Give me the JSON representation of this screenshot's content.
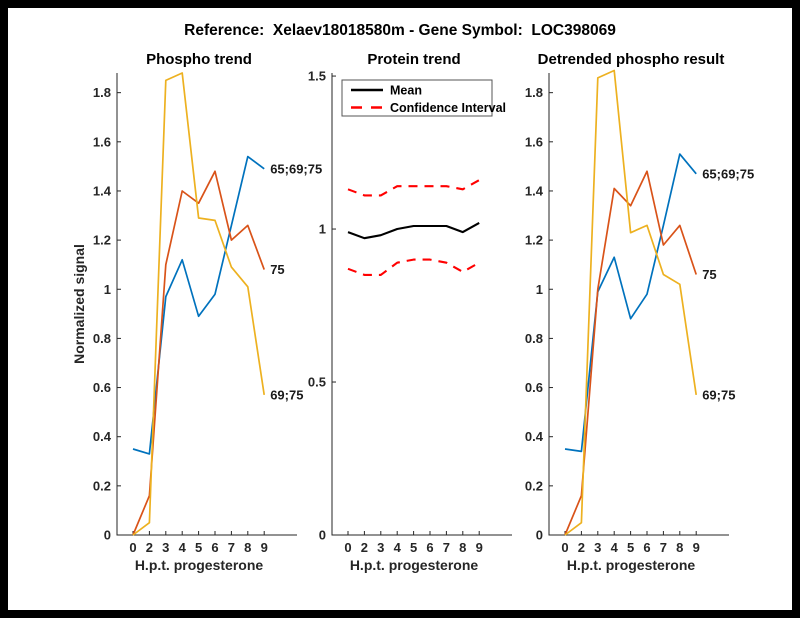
{
  "frame": {
    "border_color": "#000000",
    "canvas_color": "#ffffff"
  },
  "header": {
    "title": "Reference:  Xelaev18018580m - Gene Symbol:  LOC398069"
  },
  "colors": {
    "blue": "#0072BD",
    "orange": "#D95319",
    "yellow": "#EDB120",
    "red": "#FF0000",
    "black": "#000000",
    "axis": "#262626"
  },
  "chart_data": [
    {
      "type": "line",
      "title": "Phospho trend",
      "xlabel": "H.p.t. progesterone",
      "ylabel": "Normalized signal",
      "categories": [
        "0",
        "2",
        "3",
        "4",
        "5",
        "6",
        "7",
        "8",
        "9"
      ],
      "ylim": [
        0,
        1.88
      ],
      "grid": false,
      "yticks": {
        "values": [
          0,
          0.2,
          0.4,
          0.6,
          0.8,
          1,
          1.2,
          1.4,
          1.6,
          1.8
        ],
        "labels": [
          "0",
          "0.2",
          "0.4",
          "0.6",
          "0.8",
          "1",
          "1.2",
          "1.4",
          "1.6",
          "1.8"
        ]
      },
      "series": [
        {
          "name": "65;69;75",
          "color_key": "blue",
          "dash": false,
          "end_label": "65;69;75",
          "values": [
            0.35,
            0.33,
            0.97,
            1.12,
            0.89,
            0.98,
            1.26,
            1.54,
            1.49
          ]
        },
        {
          "name": "75",
          "color_key": "orange",
          "dash": false,
          "end_label": "75",
          "values": [
            0.0,
            0.16,
            1.1,
            1.4,
            1.35,
            1.48,
            1.2,
            1.26,
            1.08
          ]
        },
        {
          "name": "69;75",
          "color_key": "yellow",
          "dash": false,
          "end_label": "69;75",
          "values": [
            0.0,
            0.05,
            1.85,
            1.88,
            1.29,
            1.28,
            1.09,
            1.01,
            0.57
          ]
        }
      ],
      "legend": null
    },
    {
      "type": "line",
      "title": "Protein trend",
      "xlabel": "H.p.t. progesterone",
      "ylabel": "",
      "categories": [
        "0",
        "2",
        "3",
        "4",
        "5",
        "6",
        "7",
        "8",
        "9"
      ],
      "ylim": [
        0,
        1.51
      ],
      "grid": false,
      "yticks": {
        "values": [
          0,
          0.5,
          1,
          1.5
        ],
        "labels": [
          "0",
          "0.5",
          "1",
          "1.5"
        ]
      },
      "series": [
        {
          "name": "Mean",
          "color_key": "black",
          "dash": false,
          "end_label": null,
          "values": [
            0.99,
            0.97,
            0.98,
            1.0,
            1.01,
            1.01,
            1.01,
            0.99,
            1.02
          ]
        },
        {
          "name": "Confidence Interval upper",
          "color_key": "red",
          "dash": true,
          "end_label": null,
          "values": [
            1.13,
            1.11,
            1.11,
            1.14,
            1.14,
            1.14,
            1.14,
            1.13,
            1.16
          ]
        },
        {
          "name": "Confidence Interval lower",
          "color_key": "red",
          "dash": true,
          "end_label": null,
          "values": [
            0.87,
            0.85,
            0.85,
            0.89,
            0.9,
            0.9,
            0.89,
            0.86,
            0.89
          ]
        }
      ],
      "legend": {
        "position": "top-left",
        "entries": [
          {
            "label": "Mean",
            "color_key": "black",
            "dash": false
          },
          {
            "label": "Confidence Interval",
            "color_key": "red",
            "dash": true
          }
        ]
      }
    },
    {
      "type": "line",
      "title": "Detrended phospho result",
      "xlabel": "H.p.t. progesterone",
      "ylabel": "",
      "categories": [
        "0",
        "2",
        "3",
        "4",
        "5",
        "6",
        "7",
        "8",
        "9"
      ],
      "ylim": [
        0,
        1.88
      ],
      "grid": false,
      "yticks": {
        "values": [
          0,
          0.2,
          0.4,
          0.6,
          0.8,
          1,
          1.2,
          1.4,
          1.6,
          1.8
        ],
        "labels": [
          "0",
          "0.2",
          "0.4",
          "0.6",
          "0.8",
          "1",
          "1.2",
          "1.4",
          "1.6",
          "1.8"
        ]
      },
      "series": [
        {
          "name": "65;69;75",
          "color_key": "blue",
          "dash": false,
          "end_label": "65;69;75",
          "values": [
            0.35,
            0.34,
            0.99,
            1.13,
            0.88,
            0.98,
            1.26,
            1.55,
            1.47
          ]
        },
        {
          "name": "75",
          "color_key": "orange",
          "dash": false,
          "end_label": "75",
          "values": [
            0.0,
            0.16,
            1.0,
            1.41,
            1.34,
            1.48,
            1.18,
            1.26,
            1.06
          ]
        },
        {
          "name": "69;75",
          "color_key": "yellow",
          "dash": false,
          "end_label": "69;75",
          "values": [
            0.0,
            0.05,
            1.86,
            1.89,
            1.23,
            1.26,
            1.06,
            1.02,
            0.57
          ]
        }
      ],
      "legend": null
    }
  ]
}
